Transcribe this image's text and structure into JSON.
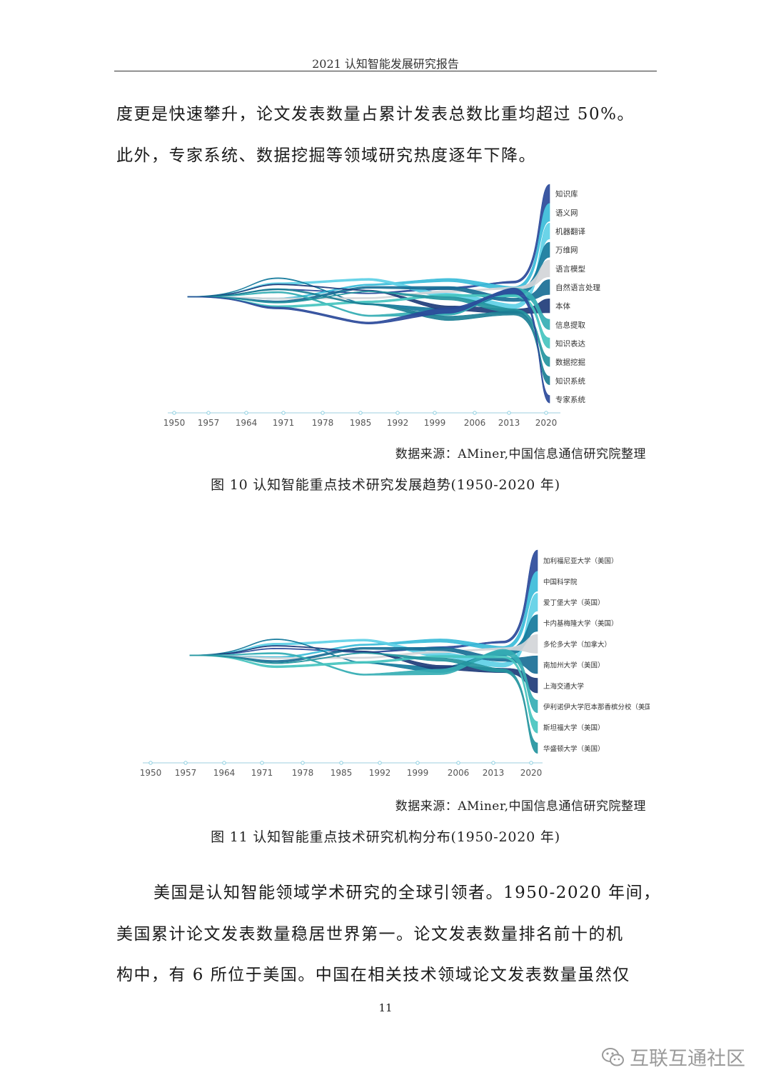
{
  "header": {
    "title": "2021 认知智能发展研究报告"
  },
  "paragraphs": {
    "top": [
      "度更是快速攀升，论文发表数量占累计发表总数比重均超过 50%。",
      "此外，专家系统、数据挖掘等领域研究热度逐年下降。"
    ],
    "bottom": [
      "美国是认知智能领域学术研究的全球引领者。1950-2020 年间，",
      "美国累计论文发表数量稳居世界第一。论文发表数量排名前十的机",
      "构中，有 6 所位于美国。中国在相关技术领域论文发表数量虽然仅"
    ]
  },
  "figures": [
    {
      "source": "数据来源：AMiner,中国信息通信研究院整理",
      "caption": "图  10 认知智能重点技术研究发展趋势(1950-2020 年)"
    },
    {
      "source": "数据来源：AMiner,中国信息通信研究院整理",
      "caption": "图  11 认知智能重点技术研究机构分布(1950-2020 年)"
    }
  ],
  "page_number": "11",
  "watermark": "互联互通社区",
  "colors": [
    "#2b4a9a",
    "#3bbcd9",
    "#5ed0e6",
    "#157a9c",
    "#d2d5d8",
    "#1a6f96",
    "#1f3c7a",
    "#35aeb4",
    "#46c4bf",
    "#24959f",
    "#1c7f95"
  ],
  "chart_data": [
    {
      "type": "area",
      "x_ticks": [
        "1950",
        "1957",
        "1964",
        "1971",
        "1978",
        "1985",
        "1992",
        "1999",
        "2006",
        "2013",
        "2020"
      ],
      "series": [
        {
          "name": "知识库"
        },
        {
          "name": "语义网"
        },
        {
          "name": "机器翻译"
        },
        {
          "name": "万维网"
        },
        {
          "name": "语言模型"
        },
        {
          "name": "自然语言处理"
        },
        {
          "name": "本体"
        },
        {
          "name": "信息提取"
        },
        {
          "name": "知识表达"
        },
        {
          "name": "数据挖掘"
        },
        {
          "name": "知识系统"
        },
        {
          "name": "专家系统"
        }
      ]
    },
    {
      "type": "area",
      "x_ticks": [
        "1950",
        "1957",
        "1964",
        "1971",
        "1978",
        "1985",
        "1992",
        "1999",
        "2006",
        "2013",
        "2020"
      ],
      "series": [
        {
          "name": "加利福尼亚大学（美国）"
        },
        {
          "name": "中国科学院"
        },
        {
          "name": "爱丁堡大学（英国）"
        },
        {
          "name": "卡内基梅隆大学（美国）"
        },
        {
          "name": "多伦多大学（加拿大）"
        },
        {
          "name": "南加州大学（美国）"
        },
        {
          "name": "上海交通大学"
        },
        {
          "name": "伊利诺伊大学厄本那香槟分校（美国）"
        },
        {
          "name": "斯坦福大学（美国）"
        },
        {
          "name": "华盛顿大学（美国）"
        }
      ]
    }
  ]
}
